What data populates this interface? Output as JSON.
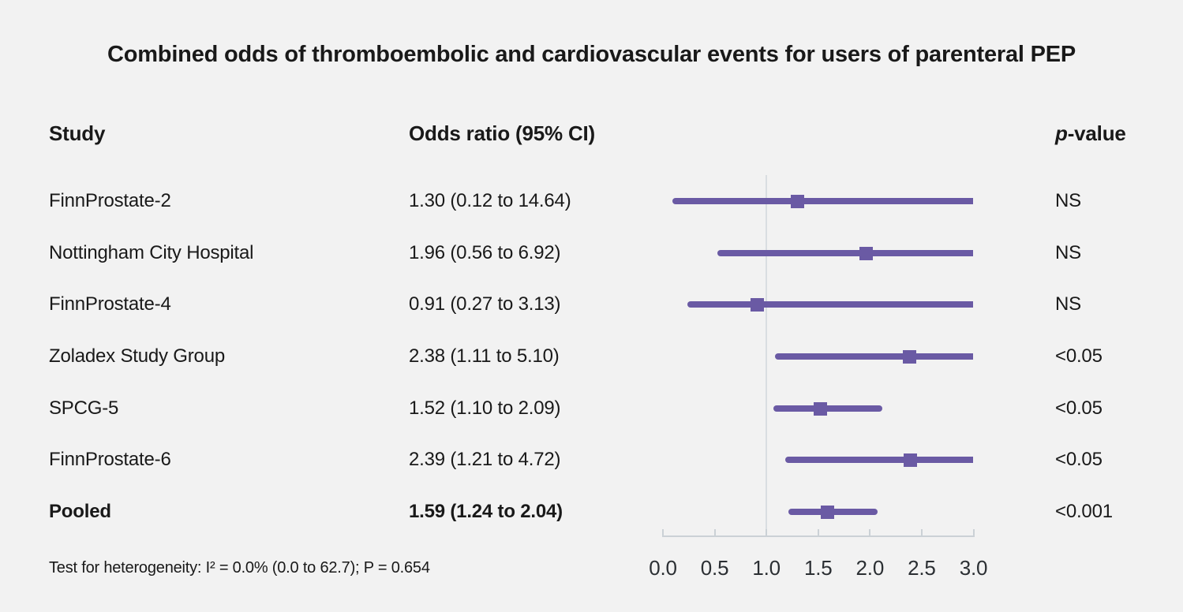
{
  "page": {
    "background_color": "#f2f2f2",
    "text_color": "#191919"
  },
  "title": "Combined odds of thromboembolic and cardiovascular events for users of parenteral PEP",
  "columns": {
    "study": "Study",
    "odds_ratio": "Odds ratio (95% CI)",
    "p_italic": "p",
    "p_rest": "-value"
  },
  "footnote": "Test for heterogeneity: I² = 0.0% (0.0 to 62.7); P = 0.654",
  "chart_data": {
    "type": "forest",
    "title": "Combined odds of thromboembolic and cardiovascular events for users of parenteral PEP",
    "accent_color": "#6a5aa4",
    "axis_color": "#cbd1d6",
    "reference_line_color": "#d9dde1",
    "axis": {
      "min": 0,
      "max": 3,
      "reference_value": 1.0,
      "ticks": [
        0.0,
        0.5,
        1.0,
        1.5,
        2.0,
        2.5,
        3.0
      ],
      "tick_labels": [
        "0.0",
        "0.5",
        "1.0",
        "1.5",
        "2.0",
        "2.5",
        "3.0"
      ]
    },
    "rows": [
      {
        "study": "FinnProstate-2",
        "or": 1.3,
        "ci_low": 0.12,
        "ci_high": 14.64,
        "or_ci_label": "1.30 (0.12 to 14.64)",
        "p_value": "NS",
        "bold": false
      },
      {
        "study": "Nottingham City Hospital",
        "or": 1.96,
        "ci_low": 0.56,
        "ci_high": 6.92,
        "or_ci_label": "1.96 (0.56 to 6.92)",
        "p_value": "NS",
        "bold": false
      },
      {
        "study": "FinnProstate-4",
        "or": 0.91,
        "ci_low": 0.27,
        "ci_high": 3.13,
        "or_ci_label": "0.91 (0.27 to 3.13)",
        "p_value": "NS",
        "bold": false
      },
      {
        "study": "Zoladex Study Group",
        "or": 2.38,
        "ci_low": 1.11,
        "ci_high": 5.1,
        "or_ci_label": "2.38 (1.11 to 5.10)",
        "p_value": "<0.05",
        "bold": false
      },
      {
        "study": "SPCG-5",
        "or": 1.52,
        "ci_low": 1.1,
        "ci_high": 2.09,
        "or_ci_label": "1.52 (1.10 to 2.09)",
        "p_value": "<0.05",
        "bold": false
      },
      {
        "study": "FinnProstate-6",
        "or": 2.39,
        "ci_low": 1.21,
        "ci_high": 4.72,
        "or_ci_label": "2.39 (1.21 to 4.72)",
        "p_value": "<0.05",
        "bold": false
      },
      {
        "study": "Pooled",
        "or": 1.59,
        "ci_low": 1.24,
        "ci_high": 2.04,
        "or_ci_label": "1.59 (1.24 to 2.04)",
        "p_value": "<0.001",
        "bold": true
      }
    ]
  }
}
